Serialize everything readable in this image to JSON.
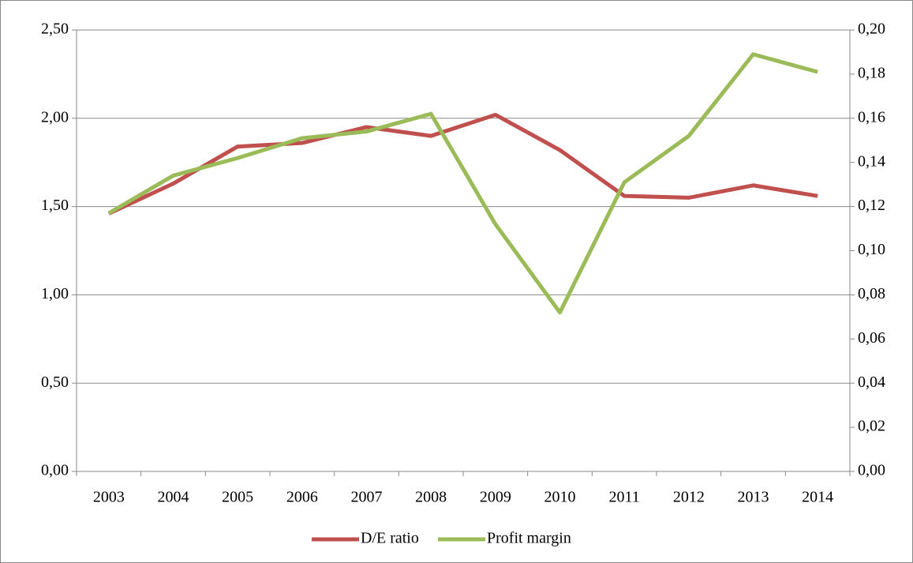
{
  "chart_data": {
    "type": "line",
    "categories": [
      "2003",
      "2004",
      "2005",
      "2006",
      "2007",
      "2008",
      "2009",
      "2010",
      "2011",
      "2012",
      "2013",
      "2014"
    ],
    "series": [
      {
        "name": "D/E ratio",
        "color": "#c0504d",
        "values": [
          1.46,
          1.63,
          1.84,
          1.86,
          1.95,
          1.9,
          2.02,
          1.82,
          1.56,
          1.55,
          1.62,
          1.56
        ]
      },
      {
        "name": "Profit margin",
        "color": "#9bbb59",
        "axis": "y2",
        "values": [
          0.117,
          0.134,
          0.142,
          0.151,
          0.154,
          0.162,
          0.112,
          0.072,
          0.131,
          0.152,
          0.189,
          0.181
        ]
      }
    ],
    "ylim": [
      0,
      2.5
    ],
    "yticks": [
      {
        "value": 0,
        "label": "0,00"
      },
      {
        "value": 0.5,
        "label": "0,50"
      },
      {
        "value": 1,
        "label": "1,00"
      },
      {
        "value": 1.5,
        "label": "1,50"
      },
      {
        "value": 2,
        "label": "2,00"
      },
      {
        "value": 2.5,
        "label": "2,50"
      }
    ],
    "y2lim": [
      0,
      0.2
    ],
    "y2ticks": [
      {
        "value": 0,
        "label": "0,00"
      },
      {
        "value": 0.02,
        "label": "0,02"
      },
      {
        "value": 0.04,
        "label": "0,04"
      },
      {
        "value": 0.06,
        "label": "0,06"
      },
      {
        "value": 0.08,
        "label": "0,08"
      },
      {
        "value": 0.1,
        "label": "0,10"
      },
      {
        "value": 0.12,
        "label": "0,12"
      },
      {
        "value": 0.14,
        "label": "0,14"
      },
      {
        "value": 0.16,
        "label": "0,16"
      },
      {
        "value": 0.18,
        "label": "0,18"
      },
      {
        "value": 0.2,
        "label": "0,20"
      }
    ],
    "grid": true,
    "legend": "bottom"
  }
}
